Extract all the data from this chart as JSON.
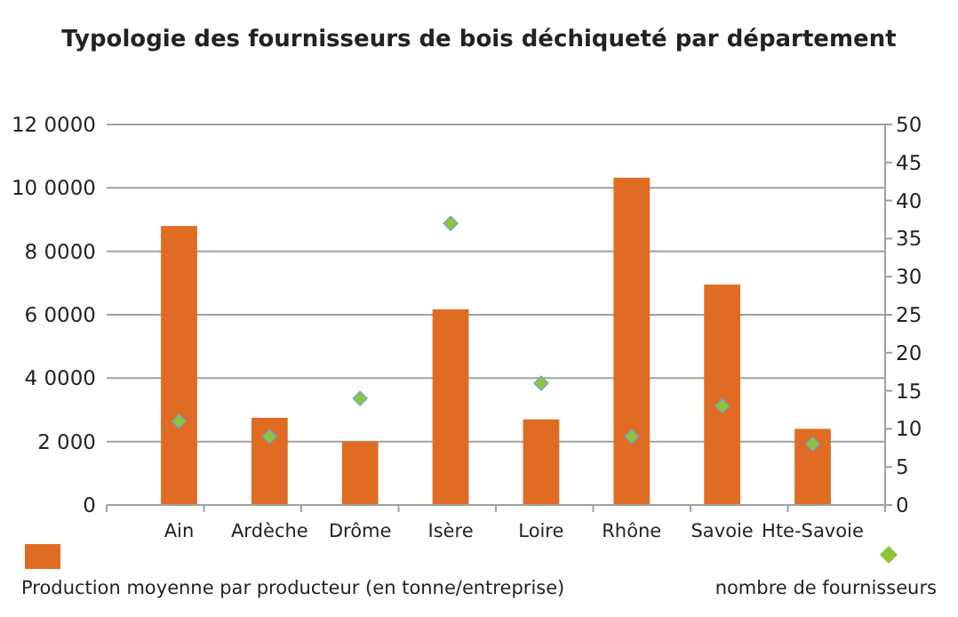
{
  "chart_data": {
    "type": "bar",
    "title": "Typologie des fournisseurs de bois déchiqueté par département",
    "categories": [
      "Ain",
      "Ardèche",
      "Drôme",
      "Isère",
      "Loire",
      "Rhône",
      "Savoie",
      "Hte-Savoie"
    ],
    "series": [
      {
        "name": "Production moyenne par producteur (en tonne/entreprise)",
        "color": "#e06c24",
        "values": [
          8800,
          2750,
          2000,
          6170,
          2700,
          10320,
          6950,
          2400
        ]
      },
      {
        "name": "nombre de fournisseurs",
        "type": "scatter",
        "axis": "y2",
        "color": "#8cc43c",
        "values": [
          11,
          9,
          14,
          37,
          16,
          9,
          13,
          8
        ]
      }
    ],
    "ylim": [
      0,
      12000
    ],
    "yticks": [
      {
        "value": 0,
        "label": "0"
      },
      {
        "value": 2000,
        "label": "2 000"
      },
      {
        "value": 4000,
        "label": "4 0000"
      },
      {
        "value": 6000,
        "label": "6 0000"
      },
      {
        "value": 8000,
        "label": "8 0000"
      },
      {
        "value": 10000,
        "label": "10 0000"
      },
      {
        "value": 12000,
        "label": "12 0000"
      }
    ],
    "y2lim": [
      0,
      50
    ],
    "y2ticks": [
      0,
      5,
      10,
      15,
      20,
      25,
      30,
      35,
      40,
      45,
      50
    ],
    "grid": "y",
    "legend": "bottom",
    "marker": "diamond"
  }
}
